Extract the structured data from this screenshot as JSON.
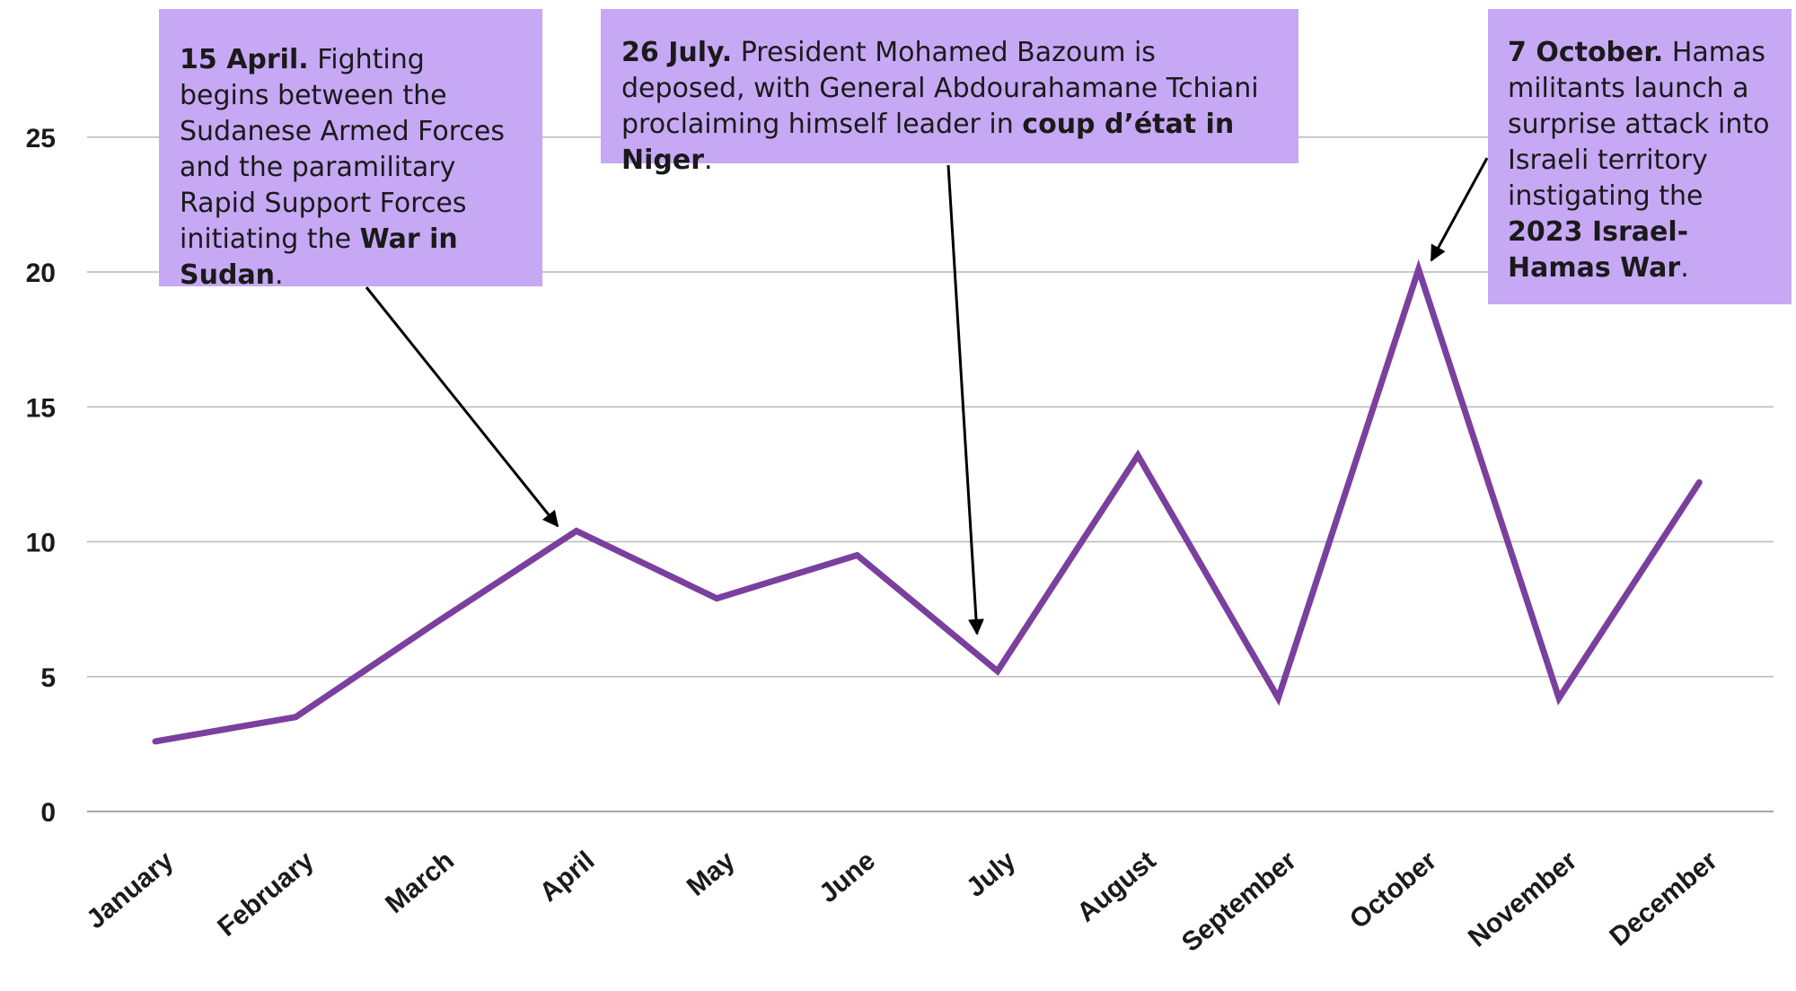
{
  "chart_data": {
    "type": "line",
    "categories": [
      "January",
      "February",
      "March",
      "April",
      "May",
      "June",
      "July",
      "August",
      "September",
      "October",
      "November",
      "December"
    ],
    "series": [
      {
        "values": [
          2.6,
          3.5,
          7.0,
          10.4,
          7.9,
          9.5,
          5.2,
          13.2,
          4.2,
          20.1,
          4.2,
          12.2
        ]
      }
    ],
    "ylim": [
      0,
      27.5
    ],
    "yticks": [
      0,
      5,
      10,
      15,
      20,
      25
    ],
    "grid": true,
    "line_color": "#7b3f9e",
    "annotation_color": "#c7a8f5",
    "annotations": [
      {
        "category": "April",
        "bold": "15 April.",
        "text": " Fighting begins between the Sudanese Armed Forces and the paramilitary Rapid Support Forces initiating the ",
        "bold2": "War in Sudan",
        "end": "."
      },
      {
        "category": "July",
        "bold": "26 July.",
        "text": " President Mohamed Bazoum is deposed, with General Abdourahamane Tchiani proclaiming himself leader in ",
        "bold2": "coup d’état in Niger",
        "end": "."
      },
      {
        "category": "October",
        "bold": "7 October.",
        "text": " Hamas militants launch a surprise attack into Israeli territory instigating the ",
        "bold2": "2023 Israel-Hamas War",
        "end": "."
      }
    ]
  }
}
